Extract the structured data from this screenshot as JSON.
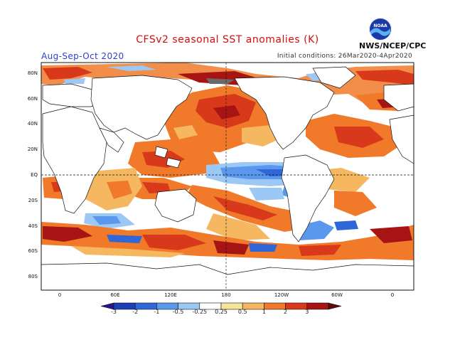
{
  "title": "CFSv2 seasonal SST anomalies (K)",
  "season": "Aug-Sep-Oct 2020",
  "initial_conditions": "Initial conditions: 26Mar2020-4Apr2020",
  "agency": "NWS/NCEP/CPC",
  "logo_text": "NOAA",
  "lat_labels": [
    "80N",
    "60N",
    "40N",
    "20N",
    "EQ",
    "20S",
    "40S",
    "60S",
    "80S"
  ],
  "lon_labels": [
    "0",
    "60E",
    "120E",
    "180",
    "120W",
    "60W",
    "0"
  ],
  "colorbar": {
    "labels": [
      "-3",
      "-2",
      "-1",
      "-0.5",
      "-0.25",
      "0.25",
      "0.5",
      "1",
      "2",
      "3"
    ],
    "colors": [
      "#2a1290",
      "#1c3fb8",
      "#2f66d8",
      "#5a98ee",
      "#9cc8f5",
      "#ffffff",
      "#f7e39a",
      "#f5b860",
      "#f07a2a",
      "#d8391a",
      "#a61414",
      "#5e0a0a"
    ]
  },
  "colors": {
    "title": "#d01010",
    "season": "#2b3fd0",
    "warm": "#f07a2a",
    "warm_light": "#f5b860",
    "warm_pale": "#f7e39a",
    "hot": "#d8391a",
    "very_hot": "#a61414",
    "cool_light": "#9cc8f5",
    "cool": "#5a98ee",
    "cool_dark": "#2f66d8"
  }
}
